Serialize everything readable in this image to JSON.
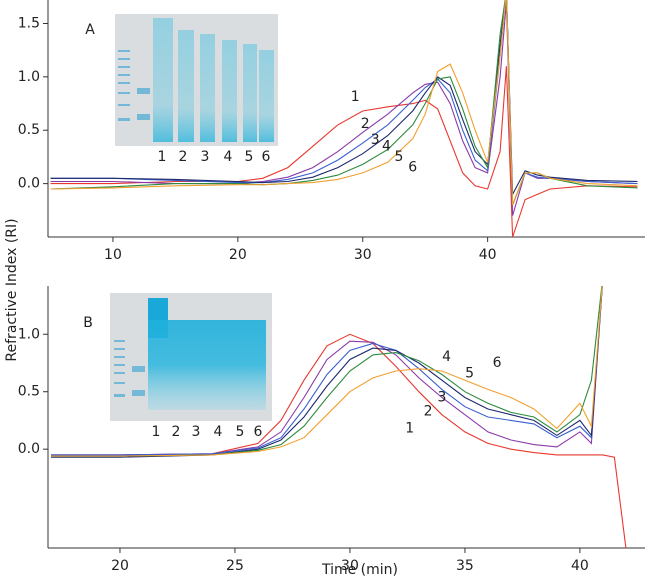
{
  "chart_data": [
    {
      "type": "line",
      "panel_label": "A",
      "ylabel": "Refractive Index (RI)",
      "x": [
        5,
        10,
        15,
        20,
        22,
        24,
        26,
        28,
        30,
        32,
        34,
        35,
        36,
        37,
        38,
        39,
        40,
        41,
        41.5,
        42,
        43,
        44,
        45,
        48,
        52
      ],
      "series": [
        {
          "color": "#e8382f",
          "values": [
            0.0,
            0.0,
            0.02,
            0.02,
            0.05,
            0.15,
            0.35,
            0.55,
            0.68,
            0.72,
            0.75,
            0.78,
            0.7,
            0.4,
            0.1,
            -0.02,
            -0.05,
            0.3,
            1.1,
            -0.5,
            -0.15,
            -0.1,
            -0.05,
            -0.02,
            -0.03
          ]
        },
        {
          "color": "#8b3aa8",
          "values": [
            0.02,
            0.02,
            0.0,
            0.0,
            0.02,
            0.06,
            0.15,
            0.3,
            0.48,
            0.65,
            0.85,
            0.93,
            0.95,
            0.75,
            0.4,
            0.15,
            0.1,
            1.0,
            1.7,
            -0.3,
            0.1,
            0.05,
            0.05,
            0.02,
            0.0
          ]
        },
        {
          "color": "#3a5fcf",
          "values": [
            0.05,
            0.05,
            0.03,
            0.01,
            0.01,
            0.04,
            0.1,
            0.22,
            0.38,
            0.55,
            0.78,
            0.9,
            0.98,
            0.85,
            0.5,
            0.22,
            0.12,
            1.2,
            1.8,
            -0.2,
            0.1,
            0.06,
            0.05,
            0.02,
            0.0
          ]
        },
        {
          "color": "#1c2a6e",
          "values": [
            0.05,
            0.05,
            0.04,
            0.02,
            0.01,
            0.02,
            0.06,
            0.15,
            0.28,
            0.45,
            0.68,
            0.85,
            1.0,
            0.92,
            0.6,
            0.3,
            0.18,
            1.3,
            1.8,
            -0.1,
            0.12,
            0.08,
            0.06,
            0.03,
            0.02
          ]
        },
        {
          "color": "#2e8b3e",
          "values": [
            -0.05,
            -0.03,
            0.0,
            0.0,
            -0.01,
            0.0,
            0.03,
            0.08,
            0.18,
            0.32,
            0.55,
            0.75,
            0.98,
            1.0,
            0.7,
            0.35,
            0.15,
            1.4,
            1.8,
            -0.2,
            0.1,
            0.1,
            0.05,
            -0.02,
            -0.04
          ]
        },
        {
          "color": "#f0a030",
          "values": [
            -0.05,
            -0.04,
            -0.02,
            -0.01,
            -0.01,
            0.0,
            0.01,
            0.04,
            0.1,
            0.2,
            0.42,
            0.65,
            1.05,
            1.12,
            0.85,
            0.5,
            0.2,
            1.2,
            1.8,
            -0.2,
            0.1,
            0.1,
            0.05,
            0.0,
            -0.02
          ]
        }
      ],
      "xlim": [
        4.8,
        52.6
      ],
      "ylim": [
        -0.5,
        1.72
      ],
      "xticks": [
        10,
        20,
        30,
        40
      ],
      "yticks": [
        {
          "value": 0,
          "label": "0.0"
        },
        {
          "value": 0.5,
          "label": "0.5"
        },
        {
          "value": 1,
          "label": "1.0"
        },
        {
          "value": 1.5,
          "label": "1.5"
        }
      ],
      "annotations": [
        {
          "text": "1",
          "x": 29.4,
          "y": 0.81
        },
        {
          "text": "2",
          "x": 30.2,
          "y": 0.56
        },
        {
          "text": "3",
          "x": 31.0,
          "y": 0.41
        },
        {
          "text": "4",
          "x": 31.9,
          "y": 0.35
        },
        {
          "text": "5",
          "x": 32.9,
          "y": 0.25
        },
        {
          "text": "6",
          "x": 34.0,
          "y": 0.15
        }
      ],
      "inset_lane_labels": [
        "1",
        "2",
        "3",
        "4",
        "5",
        "6"
      ]
    },
    {
      "type": "line",
      "panel_label": "B",
      "xlabel": "Time (min)",
      "x": [
        17,
        20,
        24,
        26,
        27,
        28,
        29,
        30,
        31,
        32,
        33,
        34,
        35,
        36,
        37,
        38,
        39,
        40,
        40.5,
        41,
        41.5,
        42,
        42.8
      ],
      "series": [
        {
          "color": "#e8382f",
          "values": [
            -0.05,
            -0.05,
            -0.04,
            0.05,
            0.25,
            0.6,
            0.9,
            1.0,
            0.92,
            0.72,
            0.5,
            0.3,
            0.15,
            0.05,
            0.0,
            -0.03,
            -0.05,
            -0.05,
            -0.05,
            -0.05,
            -0.07,
            -0.86,
            null
          ]
        },
        {
          "color": "#8b3aa8",
          "values": [
            -0.05,
            -0.05,
            -0.04,
            0.02,
            0.15,
            0.45,
            0.78,
            0.94,
            0.93,
            0.82,
            0.62,
            0.45,
            0.3,
            0.15,
            0.08,
            0.04,
            0.02,
            0.15,
            0.05,
            1.5,
            1.5,
            1.5,
            1.5
          ]
        },
        {
          "color": "#3a5fcf",
          "values": [
            -0.05,
            -0.05,
            -0.04,
            0.01,
            0.1,
            0.35,
            0.65,
            0.86,
            0.92,
            0.86,
            0.7,
            0.52,
            0.37,
            0.28,
            0.25,
            0.22,
            0.1,
            0.2,
            0.1,
            1.5,
            1.5,
            1.5,
            1.5
          ]
        },
        {
          "color": "#1c2a6e",
          "values": [
            -0.07,
            -0.07,
            -0.05,
            0.0,
            0.08,
            0.28,
            0.55,
            0.78,
            0.88,
            0.86,
            0.75,
            0.6,
            0.45,
            0.35,
            0.3,
            0.25,
            0.12,
            0.25,
            0.12,
            1.5,
            1.5,
            1.5,
            1.5
          ]
        },
        {
          "color": "#2e8b3e",
          "values": [
            -0.06,
            -0.06,
            -0.05,
            -0.01,
            0.04,
            0.2,
            0.45,
            0.68,
            0.82,
            0.84,
            0.77,
            0.65,
            0.5,
            0.4,
            0.32,
            0.28,
            0.15,
            0.3,
            0.6,
            1.5,
            1.5,
            1.5,
            1.5
          ]
        },
        {
          "color": "#f0a030",
          "values": [
            -0.06,
            -0.06,
            -0.05,
            -0.02,
            0.02,
            0.1,
            0.3,
            0.5,
            0.62,
            0.68,
            0.7,
            0.68,
            0.6,
            0.52,
            0.45,
            0.35,
            0.18,
            0.4,
            0.2,
            1.5,
            1.5,
            1.5,
            1.5
          ]
        }
      ],
      "xlim": [
        16.87,
        42.83
      ],
      "ylim": [
        -0.86,
        1.42
      ],
      "xticks": [
        20,
        25,
        30,
        35,
        40
      ],
      "yticks": [
        {
          "value": 0,
          "label": "0.0"
        },
        {
          "value": 0.5,
          "label": "0.5"
        },
        {
          "value": 1,
          "label": "1.0"
        }
      ],
      "annotations": [
        {
          "text": "1",
          "x": 32.6,
          "y": 0.18
        },
        {
          "text": "2",
          "x": 33.4,
          "y": 0.33
        },
        {
          "text": "3",
          "x": 34.0,
          "y": 0.45
        },
        {
          "text": "4",
          "x": 34.2,
          "y": 0.8
        },
        {
          "text": "5",
          "x": 35.2,
          "y": 0.66
        },
        {
          "text": "6",
          "x": 36.4,
          "y": 0.75
        }
      ],
      "inset_lane_labels": [
        "1",
        "2",
        "3",
        "4",
        "5",
        "6"
      ]
    }
  ]
}
